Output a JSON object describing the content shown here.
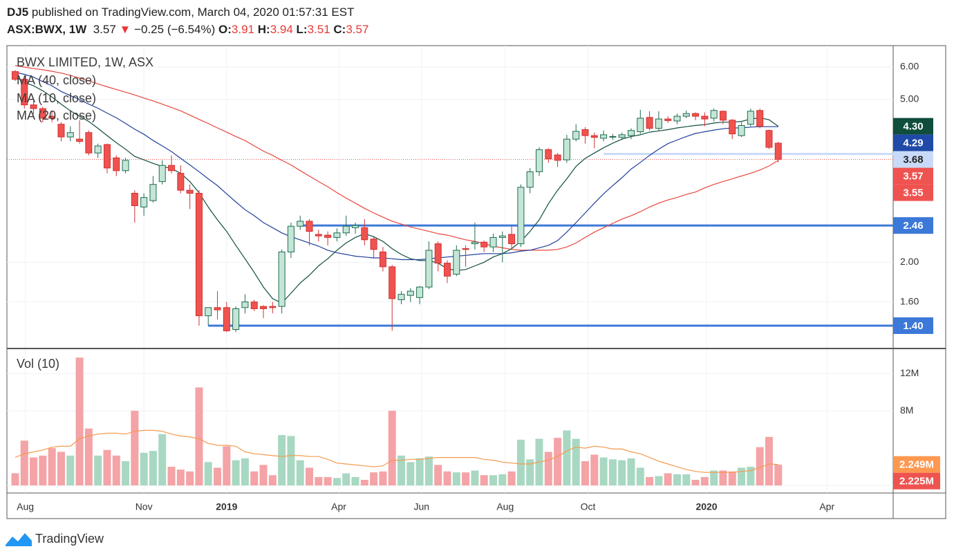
{
  "header": {
    "author": "DJ5",
    "text": "published on TradingView.com, March 04, 2020 01:57:31 EST",
    "symbol": "ASX:BWX, 1W",
    "last": "3.57",
    "arrow": "▼",
    "change": "−0.25 (−6.54%)",
    "ohlc": [
      {
        "label": "O:",
        "value": "3.91"
      },
      {
        "label": "H:",
        "value": "3.94"
      },
      {
        "label": "L:",
        "value": "3.51"
      },
      {
        "label": "C:",
        "value": "3.57"
      }
    ]
  },
  "footer": {
    "brand": "TradingView"
  },
  "chart_data": [
    {
      "type": "candlestick",
      "title": "BWX LIMITED, 1W, ASX",
      "log": true,
      "grid": true,
      "up_color": "#c4e6d6",
      "up_border": "#1f6b50",
      "down_color": "#ef5350",
      "down_border": "#d32f2f",
      "xlim": [
        -0.9,
        95.5
      ],
      "ylim": [
        1.236,
        6.77
      ],
      "yticks": [
        {
          "value": 6,
          "label": "6.00"
        },
        {
          "value": 5,
          "label": "5.00"
        },
        {
          "value": 2,
          "label": "2.00"
        },
        {
          "value": 1.6,
          "label": "1.60"
        }
      ],
      "open": [
        5.85,
        5.6,
        4.85,
        4.75,
        4.55,
        4.35,
        4.05,
        4.0,
        4.15,
        3.7,
        3.88,
        3.6,
        3.35,
        2.95,
        2.73,
        2.83,
        3.15,
        3.45,
        3.3,
        3.0,
        2.95,
        1.48,
        1.55,
        1.55,
        1.37,
        1.55,
        1.6,
        1.56,
        1.56,
        1.56,
        2.12,
        2.45,
        2.52,
        2.34,
        2.33,
        2.3,
        2.36,
        2.43,
        2.43,
        2.28,
        2.12,
        1.95,
        1.62,
        1.66,
        1.64,
        1.74,
        2.22,
        1.99,
        1.87,
        2.16,
        2.22,
        2.24,
        2.18,
        2.3,
        2.34,
        2.22,
        3.05,
        3.33,
        3.77,
        3.66,
        3.56,
        4.0,
        4.22,
        4.08,
        4.02,
        4.05,
        4.04,
        4.08,
        4.17,
        4.52,
        4.25,
        4.48,
        4.43,
        4.55,
        4.62,
        4.55,
        4.5,
        4.68,
        4.45,
        4.08,
        4.35,
        4.7,
        4.2,
        3.91
      ],
      "high": [
        5.9,
        5.65,
        4.95,
        4.8,
        4.7,
        4.4,
        4.3,
        4.45,
        4.2,
        3.9,
        3.9,
        3.65,
        3.6,
        3.0,
        2.95,
        3.25,
        3.55,
        3.65,
        3.45,
        3.1,
        3.0,
        1.55,
        1.7,
        1.6,
        1.56,
        1.67,
        1.62,
        1.57,
        1.6,
        2.15,
        2.5,
        2.6,
        2.55,
        2.4,
        2.38,
        2.42,
        2.6,
        2.5,
        2.55,
        2.32,
        2.18,
        1.97,
        1.7,
        1.73,
        1.75,
        2.25,
        2.25,
        2.02,
        2.2,
        2.2,
        2.5,
        2.26,
        2.35,
        2.38,
        2.45,
        3.1,
        3.4,
        3.82,
        3.8,
        3.7,
        4.1,
        4.35,
        4.28,
        4.15,
        4.2,
        4.12,
        4.15,
        4.25,
        4.72,
        4.68,
        4.68,
        4.55,
        4.62,
        4.7,
        4.65,
        4.65,
        4.75,
        4.7,
        4.48,
        4.4,
        4.75,
        4.75,
        4.22,
        3.94
      ],
      "low": [
        5.55,
        4.75,
        4.6,
        4.4,
        4.4,
        3.95,
        3.95,
        3.9,
        3.65,
        3.6,
        3.3,
        3.25,
        3.3,
        2.5,
        2.6,
        2.8,
        3.1,
        3.3,
        2.95,
        2.7,
        1.4,
        1.4,
        1.45,
        1.35,
        1.35,
        1.5,
        1.52,
        1.46,
        1.5,
        1.5,
        2.05,
        2.4,
        2.2,
        2.25,
        2.2,
        2.25,
        2.32,
        2.35,
        2.2,
        2.05,
        1.9,
        1.36,
        1.58,
        1.6,
        1.58,
        1.72,
        1.9,
        1.78,
        1.85,
        1.95,
        2.15,
        2.12,
        2.12,
        2.0,
        2.15,
        2.18,
        2.95,
        3.25,
        3.5,
        3.42,
        3.5,
        3.95,
        3.9,
        3.8,
        3.95,
        3.98,
        3.98,
        4.0,
        4.12,
        4.2,
        4.2,
        4.38,
        4.35,
        4.5,
        4.45,
        4.3,
        4.42,
        4.35,
        4.0,
        4.05,
        4.3,
        4.25,
        3.78,
        3.51
      ],
      "close": [
        5.6,
        4.85,
        4.75,
        4.5,
        4.5,
        4.05,
        4.15,
        3.95,
        3.7,
        3.85,
        3.4,
        3.35,
        3.55,
        2.75,
        2.88,
        3.1,
        3.45,
        3.35,
        3.0,
        2.95,
        1.48,
        1.55,
        1.53,
        1.36,
        1.54,
        1.6,
        1.54,
        1.54,
        1.55,
        2.12,
        2.45,
        2.52,
        2.38,
        2.32,
        2.3,
        2.36,
        2.45,
        2.46,
        2.27,
        2.15,
        1.95,
        1.63,
        1.67,
        1.7,
        1.74,
        2.14,
        1.99,
        1.85,
        2.14,
        2.15,
        2.24,
        2.18,
        2.3,
        2.32,
        2.22,
        3.05,
        3.33,
        3.77,
        3.58,
        3.55,
        4.0,
        4.18,
        4.08,
        4.04,
        4.1,
        4.06,
        4.1,
        4.2,
        4.5,
        4.25,
        4.48,
        4.44,
        4.55,
        4.62,
        4.55,
        4.48,
        4.7,
        4.45,
        4.12,
        4.32,
        4.68,
        4.3,
        3.82,
        3.57
      ],
      "series": [
        {
          "name": "MA (40, close)",
          "color": "#e8453c",
          "values": [
            6.05,
            6.0,
            5.95,
            5.91,
            5.86,
            5.8,
            5.73,
            5.64,
            5.55,
            5.46,
            5.37,
            5.29,
            5.21,
            5.13,
            5.04,
            4.96,
            4.87,
            4.78,
            4.69,
            4.58,
            4.47,
            4.37,
            4.26,
            4.16,
            4.06,
            3.97,
            3.85,
            3.74,
            3.65,
            3.55,
            3.46,
            3.35,
            3.25,
            3.15,
            3.06,
            2.96,
            2.87,
            2.79,
            2.71,
            2.64,
            2.58,
            2.52,
            2.48,
            2.44,
            2.41,
            2.38,
            2.35,
            2.33,
            2.3,
            2.27,
            2.25,
            2.22,
            2.19,
            2.17,
            2.15,
            2.14,
            2.14,
            2.14,
            2.14,
            2.15,
            2.18,
            2.23,
            2.3,
            2.37,
            2.43,
            2.49,
            2.55,
            2.6,
            2.66,
            2.73,
            2.79,
            2.84,
            2.88,
            2.93,
            2.97,
            3.04,
            3.1,
            3.15,
            3.2,
            3.25,
            3.3,
            3.36,
            3.44,
            3.55
          ]
        },
        {
          "name": "MA (10, close)",
          "color": "#0f4d3c",
          "values": [
            5.7,
            5.5,
            5.4,
            5.25,
            5.07,
            4.87,
            4.69,
            4.55,
            4.42,
            4.25,
            4.08,
            3.92,
            3.78,
            3.63,
            3.56,
            3.49,
            3.43,
            3.39,
            3.3,
            3.15,
            2.96,
            2.73,
            2.54,
            2.38,
            2.2,
            2.04,
            1.89,
            1.74,
            1.63,
            1.59,
            1.68,
            1.78,
            1.86,
            1.96,
            2.04,
            2.14,
            2.23,
            2.3,
            2.35,
            2.31,
            2.25,
            2.16,
            2.09,
            2.04,
            2.02,
            2.02,
            1.99,
            1.93,
            1.91,
            1.92,
            1.96,
            2.0,
            2.06,
            2.1,
            2.16,
            2.25,
            2.38,
            2.54,
            2.78,
            3.0,
            3.2,
            3.43,
            3.59,
            3.7,
            3.81,
            3.91,
            4.0,
            4.06,
            4.1,
            4.16,
            4.19,
            4.22,
            4.26,
            4.29,
            4.32,
            4.34,
            4.38,
            4.4,
            4.4,
            4.42,
            4.48,
            4.51,
            4.46,
            4.3
          ]
        },
        {
          "name": "MA (20, close)",
          "color": "#1f3f9a",
          "values": [
            5.83,
            5.76,
            5.67,
            5.53,
            5.4,
            5.23,
            5.11,
            5.0,
            4.87,
            4.76,
            4.63,
            4.51,
            4.37,
            4.23,
            4.11,
            3.97,
            3.85,
            3.73,
            3.59,
            3.46,
            3.33,
            3.2,
            3.08,
            2.94,
            2.81,
            2.69,
            2.6,
            2.5,
            2.43,
            2.36,
            2.31,
            2.27,
            2.23,
            2.19,
            2.14,
            2.11,
            2.09,
            2.07,
            2.06,
            2.05,
            2.05,
            2.04,
            2.03,
            2.03,
            2.03,
            2.04,
            2.05,
            2.06,
            2.07,
            2.08,
            2.09,
            2.1,
            2.1,
            2.1,
            2.11,
            2.13,
            2.14,
            2.17,
            2.2,
            2.26,
            2.37,
            2.5,
            2.64,
            2.79,
            2.94,
            3.08,
            3.22,
            3.38,
            3.51,
            3.65,
            3.78,
            3.9,
            3.98,
            4.06,
            4.13,
            4.17,
            4.21,
            4.24,
            4.26,
            4.26,
            4.28,
            4.29,
            4.29,
            4.29
          ]
        }
      ],
      "levels": [
        {
          "value": 2.46,
          "label": "2.46",
          "color": "#3c78d8",
          "from": 31
        },
        {
          "value": 1.4,
          "label": "1.40",
          "color": "#3c78d8",
          "from": 21
        },
        {
          "value": 3.68,
          "label": "3.68",
          "color": "#c9daf8",
          "text_color": "#222222",
          "from": 64
        }
      ],
      "last_line_color": "#ef5350",
      "axis_labels": [
        {
          "value": 4.3,
          "label": "4.30",
          "color": "#0f4d3c"
        },
        {
          "value": 4.29,
          "label": "4.29",
          "color": "#1f4aa8"
        },
        {
          "value": 3.57,
          "label": "3.57",
          "color": "#ef5350"
        },
        {
          "value": 3.55,
          "label": "3.55",
          "color": "#ef5350"
        }
      ]
    },
    {
      "type": "bar",
      "title": "Vol (10)",
      "grid": true,
      "up_color": "#a8d8c2",
      "down_color": "#f4a3a6",
      "xlim": [
        -0.9,
        95.5
      ],
      "ylim": [
        -0.81,
        14.6
      ],
      "yticks": [
        {
          "value": 12,
          "label": "12M"
        },
        {
          "value": 8,
          "label": "8M"
        },
        0
      ],
      "xticks": [
        {
          "value": 1.1,
          "label": "Aug"
        },
        {
          "value": 14,
          "label": "Nov"
        },
        {
          "value": 23,
          "label": "2019"
        },
        {
          "value": 35.2,
          "label": "Apr"
        },
        {
          "value": 44.2,
          "label": "Jun"
        },
        {
          "value": 53.3,
          "label": "Aug"
        },
        {
          "value": 62.3,
          "label": "Oct"
        },
        {
          "value": 75.2,
          "label": "2020"
        },
        {
          "value": 88.3,
          "label": "Apr"
        }
      ],
      "values": [
        1.3,
        4.8,
        3.0,
        3.2,
        4.0,
        3.6,
        3.2,
        13.7,
        6.1,
        3.2,
        3.8,
        3.2,
        2.6,
        8.0,
        3.5,
        3.7,
        5.5,
        2.0,
        1.7,
        1.5,
        10.5,
        2.5,
        1.9,
        4.2,
        2.7,
        2.9,
        1.5,
        2.2,
        1.1,
        5.4,
        5.3,
        2.7,
        1.9,
        0.9,
        0.9,
        0.8,
        1.3,
        0.9,
        0.6,
        1.4,
        1.5,
        8.0,
        3.2,
        2.5,
        2.9,
        3.1,
        2.2,
        1.5,
        1.4,
        1.4,
        1.6,
        1.1,
        1.1,
        1.2,
        1.5,
        4.9,
        2.8,
        5.0,
        3.6,
        5.1,
        5.9,
        5.0,
        2.6,
        3.3,
        3.0,
        2.8,
        2.7,
        2.9,
        1.9,
        0.9,
        1.0,
        1.3,
        1.2,
        1.2,
        0.6,
        0.9,
        1.6,
        1.6,
        1.5,
        1.9,
        2.0,
        4.1,
        5.2,
        2.225
      ],
      "series": [
        {
          "color": "#f59a4d",
          "values": [
            3.0,
            3.4,
            3.6,
            3.8,
            4.1,
            4.2,
            4.2,
            5.0,
            5.3,
            5.5,
            5.6,
            5.6,
            5.5,
            5.8,
            5.9,
            5.9,
            5.8,
            5.5,
            5.3,
            5.2,
            5.0,
            4.5,
            4.3,
            4.3,
            4.2,
            3.6,
            3.4,
            3.3,
            3.2,
            3.1,
            3.2,
            3.2,
            3.1,
            3.1,
            2.8,
            2.4,
            2.3,
            2.2,
            2.1,
            2.0,
            2.1,
            2.7,
            2.7,
            2.8,
            2.8,
            2.9,
            3.0,
            3.0,
            3.0,
            3.0,
            3.0,
            2.8,
            2.7,
            2.5,
            2.4,
            2.3,
            2.3,
            2.5,
            2.7,
            3.1,
            3.7,
            4.1,
            4.0,
            4.2,
            4.1,
            3.9,
            3.9,
            3.6,
            3.4,
            3.0,
            2.6,
            2.3,
            2.0,
            1.7,
            1.5,
            1.4,
            1.4,
            1.4,
            1.4,
            1.5,
            1.6,
            1.9,
            2.3,
            2.249
          ]
        }
      ],
      "axis_labels": [
        {
          "value": 2.249,
          "label": "2.249M",
          "color": "#ff9850"
        },
        {
          "value": 2.225,
          "label": "2.225M",
          "color": "#ef5350"
        }
      ]
    }
  ]
}
